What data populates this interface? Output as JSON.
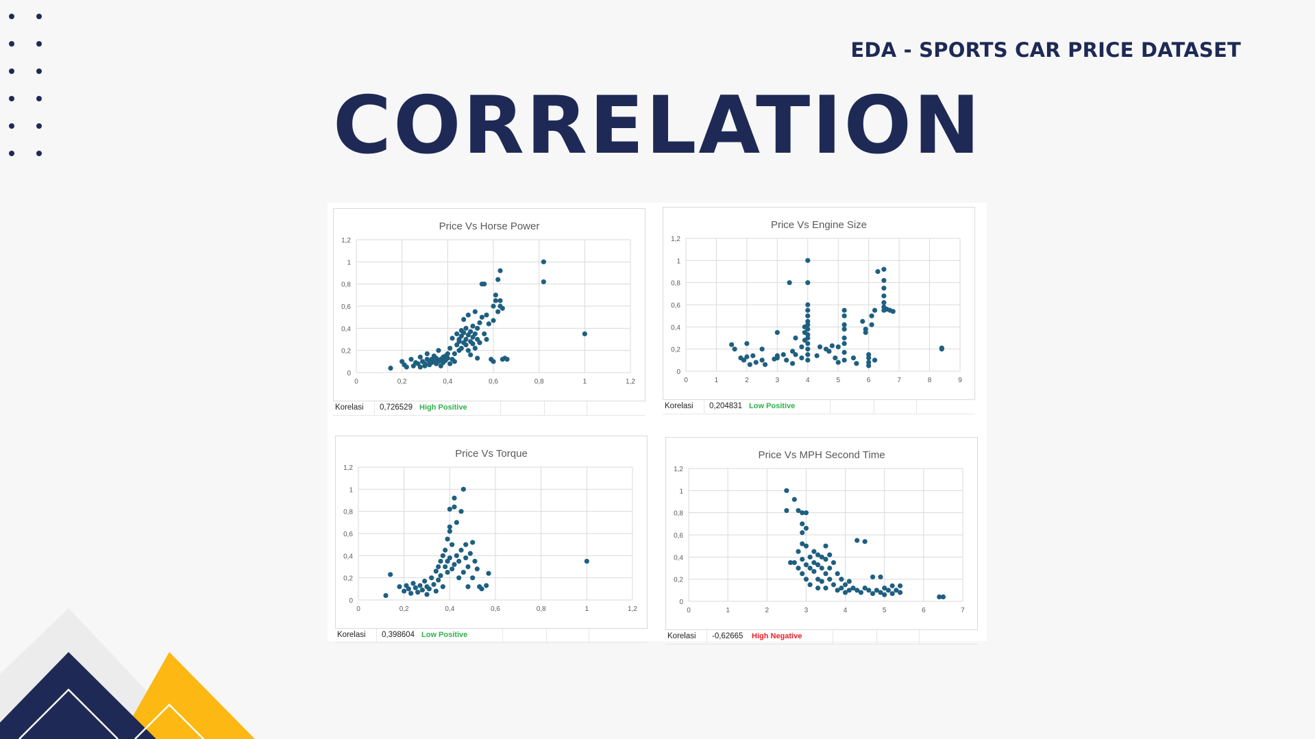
{
  "header": {
    "subtitle": "EDA - SPORTS CAR PRICE DATASET",
    "title": "CORRELATION"
  },
  "colors": {
    "navy": "#1e2a55",
    "yellow": "#fdb813",
    "marker": "#1f5f80",
    "positive": "#2db24a",
    "negative": "#e8202a"
  },
  "chart_data": [
    {
      "type": "scatter",
      "title": "Price Vs Horse Power",
      "xlim": [
        0,
        1.2
      ],
      "xticks": [
        0,
        0.2,
        0.4,
        0.6,
        0.8,
        1,
        1.2
      ],
      "xtick_labels": [
        "0",
        "0,2",
        "0,4",
        "0,6",
        "0,8",
        "1",
        "1,2"
      ],
      "ylim": [
        0,
        1.2
      ],
      "yticks": [
        0,
        0.2,
        0.4,
        0.6,
        0.8,
        1,
        1.2
      ],
      "ytick_labels": [
        "0",
        "0,2",
        "0,4",
        "0,6",
        "0,8",
        "1",
        "1,2"
      ],
      "grid": true,
      "points": [
        [
          0.15,
          0.04
        ],
        [
          0.2,
          0.1
        ],
        [
          0.21,
          0.07
        ],
        [
          0.22,
          0.05
        ],
        [
          0.24,
          0.12
        ],
        [
          0.25,
          0.06
        ],
        [
          0.26,
          0.09
        ],
        [
          0.27,
          0.08
        ],
        [
          0.28,
          0.05
        ],
        [
          0.28,
          0.14
        ],
        [
          0.29,
          0.1
        ],
        [
          0.3,
          0.08
        ],
        [
          0.3,
          0.06
        ],
        [
          0.31,
          0.12
        ],
        [
          0.31,
          0.17
        ],
        [
          0.32,
          0.1
        ],
        [
          0.32,
          0.07
        ],
        [
          0.33,
          0.09
        ],
        [
          0.33,
          0.12
        ],
        [
          0.34,
          0.15
        ],
        [
          0.34,
          0.11
        ],
        [
          0.35,
          0.08
        ],
        [
          0.35,
          0.13
        ],
        [
          0.36,
          0.1
        ],
        [
          0.36,
          0.2
        ],
        [
          0.37,
          0.12
        ],
        [
          0.37,
          0.06
        ],
        [
          0.38,
          0.14
        ],
        [
          0.38,
          0.09
        ],
        [
          0.39,
          0.15
        ],
        [
          0.39,
          0.11
        ],
        [
          0.4,
          0.13
        ],
        [
          0.4,
          0.17
        ],
        [
          0.41,
          0.08
        ],
        [
          0.41,
          0.22
        ],
        [
          0.42,
          0.12
        ],
        [
          0.42,
          0.31
        ],
        [
          0.43,
          0.17
        ],
        [
          0.43,
          0.1
        ],
        [
          0.44,
          0.25
        ],
        [
          0.44,
          0.35
        ],
        [
          0.45,
          0.2
        ],
        [
          0.45,
          0.3
        ],
        [
          0.45,
          0.28
        ],
        [
          0.46,
          0.33
        ],
        [
          0.46,
          0.38
        ],
        [
          0.46,
          0.22
        ],
        [
          0.47,
          0.27
        ],
        [
          0.47,
          0.36
        ],
        [
          0.47,
          0.48
        ],
        [
          0.48,
          0.3
        ],
        [
          0.48,
          0.25
        ],
        [
          0.48,
          0.4
        ],
        [
          0.49,
          0.34
        ],
        [
          0.49,
          0.2
        ],
        [
          0.49,
          0.52
        ],
        [
          0.5,
          0.28
        ],
        [
          0.5,
          0.37
        ],
        [
          0.5,
          0.16
        ],
        [
          0.51,
          0.32
        ],
        [
          0.51,
          0.42
        ],
        [
          0.51,
          0.26
        ],
        [
          0.52,
          0.35
        ],
        [
          0.52,
          0.55
        ],
        [
          0.52,
          0.22
        ],
        [
          0.53,
          0.3
        ],
        [
          0.53,
          0.4
        ],
        [
          0.53,
          0.13
        ],
        [
          0.54,
          0.27
        ],
        [
          0.54,
          0.45
        ],
        [
          0.55,
          0.8
        ],
        [
          0.56,
          0.8
        ],
        [
          0.55,
          0.5
        ],
        [
          0.56,
          0.35
        ],
        [
          0.57,
          0.3
        ],
        [
          0.57,
          0.52
        ],
        [
          0.58,
          0.44
        ],
        [
          0.59,
          0.12
        ],
        [
          0.6,
          0.1
        ],
        [
          0.6,
          0.47
        ],
        [
          0.6,
          0.6
        ],
        [
          0.61,
          0.65
        ],
        [
          0.61,
          0.7
        ],
        [
          0.62,
          0.55
        ],
        [
          0.62,
          0.84
        ],
        [
          0.63,
          0.92
        ],
        [
          0.63,
          0.65
        ],
        [
          0.63,
          0.6
        ],
        [
          0.64,
          0.12
        ],
        [
          0.64,
          0.58
        ],
        [
          0.65,
          0.13
        ],
        [
          0.66,
          0.12
        ],
        [
          0.82,
          1.0
        ],
        [
          0.82,
          0.82
        ],
        [
          1.0,
          0.35
        ]
      ],
      "correlation_label": "Korelasi",
      "correlation_value": "0,726529",
      "correlation_class": "High Positive",
      "class_color": "positive"
    },
    {
      "type": "scatter",
      "title": "Price Vs Engine Size",
      "xlim": [
        0,
        9
      ],
      "xticks": [
        0,
        1,
        2,
        3,
        4,
        5,
        6,
        7,
        8,
        9
      ],
      "xtick_labels": [
        "0",
        "1",
        "2",
        "3",
        "4",
        "5",
        "6",
        "7",
        "8",
        "9"
      ],
      "ylim": [
        0,
        1.2
      ],
      "yticks": [
        0,
        0.2,
        0.4,
        0.6,
        0.8,
        1,
        1.2
      ],
      "ytick_labels": [
        "0",
        "0,2",
        "0,4",
        "0,6",
        "0,8",
        "1",
        "1,2"
      ],
      "grid": true,
      "points": [
        [
          1.5,
          0.24
        ],
        [
          1.6,
          0.2
        ],
        [
          1.8,
          0.12
        ],
        [
          1.9,
          0.1
        ],
        [
          2.0,
          0.25
        ],
        [
          2.0,
          0.13
        ],
        [
          2.1,
          0.06
        ],
        [
          2.2,
          0.14
        ],
        [
          2.3,
          0.08
        ],
        [
          2.5,
          0.2
        ],
        [
          2.5,
          0.1
        ],
        [
          2.6,
          0.06
        ],
        [
          2.9,
          0.11
        ],
        [
          3.0,
          0.14
        ],
        [
          3.0,
          0.12
        ],
        [
          3.0,
          0.35
        ],
        [
          3.2,
          0.15
        ],
        [
          3.3,
          0.1
        ],
        [
          3.4,
          0.8
        ],
        [
          3.5,
          0.07
        ],
        [
          3.5,
          0.18
        ],
        [
          3.6,
          0.15
        ],
        [
          3.6,
          0.3
        ],
        [
          3.8,
          0.12
        ],
        [
          3.8,
          0.22
        ],
        [
          3.9,
          0.28
        ],
        [
          3.9,
          0.4
        ],
        [
          3.9,
          0.35
        ],
        [
          4.0,
          0.1
        ],
        [
          4.0,
          0.15
        ],
        [
          4.0,
          0.2
        ],
        [
          4.0,
          0.25
        ],
        [
          4.0,
          0.3
        ],
        [
          4.0,
          0.33
        ],
        [
          4.0,
          0.38
        ],
        [
          4.0,
          0.45
        ],
        [
          4.0,
          0.5
        ],
        [
          4.0,
          0.55
        ],
        [
          4.0,
          0.6
        ],
        [
          4.0,
          0.8
        ],
        [
          4.0,
          1.0
        ],
        [
          4.0,
          0.42
        ],
        [
          4.3,
          0.14
        ],
        [
          4.4,
          0.22
        ],
        [
          4.6,
          0.2
        ],
        [
          4.7,
          0.18
        ],
        [
          4.8,
          0.23
        ],
        [
          4.9,
          0.12
        ],
        [
          5.0,
          0.08
        ],
        [
          5.0,
          0.22
        ],
        [
          5.2,
          0.1
        ],
        [
          5.2,
          0.17
        ],
        [
          5.2,
          0.25
        ],
        [
          5.2,
          0.3
        ],
        [
          5.2,
          0.38
        ],
        [
          5.2,
          0.42
        ],
        [
          5.2,
          0.5
        ],
        [
          5.2,
          0.55
        ],
        [
          5.5,
          0.12
        ],
        [
          5.6,
          0.07
        ],
        [
          5.8,
          0.45
        ],
        [
          5.9,
          0.35
        ],
        [
          5.9,
          0.38
        ],
        [
          6.0,
          0.05
        ],
        [
          6.0,
          0.08
        ],
        [
          6.0,
          0.12
        ],
        [
          6.0,
          0.15
        ],
        [
          6.1,
          0.42
        ],
        [
          6.1,
          0.5
        ],
        [
          6.2,
          0.1
        ],
        [
          6.2,
          0.55
        ],
        [
          6.3,
          0.9
        ],
        [
          6.5,
          0.55
        ],
        [
          6.5,
          0.58
        ],
        [
          6.5,
          0.62
        ],
        [
          6.5,
          0.68
        ],
        [
          6.5,
          0.75
        ],
        [
          6.5,
          0.82
        ],
        [
          6.5,
          0.92
        ],
        [
          6.6,
          0.56
        ],
        [
          6.7,
          0.55
        ],
        [
          6.8,
          0.54
        ],
        [
          8.4,
          0.21
        ],
        [
          8.4,
          0.2
        ]
      ],
      "correlation_label": "Korelasi",
      "correlation_value": "0,204831",
      "correlation_class": "Low Positive",
      "class_color": "positive"
    },
    {
      "type": "scatter",
      "title": "Price Vs Torque",
      "xlim": [
        0,
        1.2
      ],
      "xticks": [
        0,
        0.2,
        0.4,
        0.6,
        0.8,
        1,
        1.2
      ],
      "xtick_labels": [
        "0",
        "0,2",
        "0,4",
        "0,6",
        "0,8",
        "1",
        "1,2"
      ],
      "ylim": [
        0,
        1.2
      ],
      "yticks": [
        0,
        0.2,
        0.4,
        0.6,
        0.8,
        1,
        1.2
      ],
      "ytick_labels": [
        "0",
        "0,2",
        "0,4",
        "0,6",
        "0,8",
        "1",
        "1,2"
      ],
      "grid": true,
      "points": [
        [
          0.12,
          0.04
        ],
        [
          0.14,
          0.23
        ],
        [
          0.18,
          0.12
        ],
        [
          0.2,
          0.08
        ],
        [
          0.21,
          0.13
        ],
        [
          0.22,
          0.1
        ],
        [
          0.23,
          0.06
        ],
        [
          0.24,
          0.15
        ],
        [
          0.25,
          0.11
        ],
        [
          0.26,
          0.07
        ],
        [
          0.27,
          0.13
        ],
        [
          0.28,
          0.09
        ],
        [
          0.29,
          0.17
        ],
        [
          0.3,
          0.12
        ],
        [
          0.3,
          0.05
        ],
        [
          0.31,
          0.1
        ],
        [
          0.32,
          0.2
        ],
        [
          0.33,
          0.14
        ],
        [
          0.34,
          0.26
        ],
        [
          0.34,
          0.08
        ],
        [
          0.35,
          0.3
        ],
        [
          0.35,
          0.18
        ],
        [
          0.36,
          0.35
        ],
        [
          0.36,
          0.22
        ],
        [
          0.37,
          0.4
        ],
        [
          0.37,
          0.12
        ],
        [
          0.38,
          0.3
        ],
        [
          0.38,
          0.45
        ],
        [
          0.39,
          0.25
        ],
        [
          0.39,
          0.35
        ],
        [
          0.39,
          0.55
        ],
        [
          0.4,
          0.62
        ],
        [
          0.4,
          0.66
        ],
        [
          0.4,
          0.82
        ],
        [
          0.4,
          0.38
        ],
        [
          0.41,
          0.28
        ],
        [
          0.41,
          0.5
        ],
        [
          0.42,
          0.32
        ],
        [
          0.42,
          0.84
        ],
        [
          0.42,
          0.92
        ],
        [
          0.43,
          0.4
        ],
        [
          0.43,
          0.7
        ],
        [
          0.44,
          0.2
        ],
        [
          0.44,
          0.35
        ],
        [
          0.45,
          0.8
        ],
        [
          0.45,
          0.45
        ],
        [
          0.46,
          1.0
        ],
        [
          0.46,
          0.25
        ],
        [
          0.47,
          0.38
        ],
        [
          0.47,
          0.5
        ],
        [
          0.48,
          0.3
        ],
        [
          0.48,
          0.12
        ],
        [
          0.49,
          0.42
        ],
        [
          0.5,
          0.52
        ],
        [
          0.5,
          0.2
        ],
        [
          0.51,
          0.35
        ],
        [
          0.52,
          0.28
        ],
        [
          0.53,
          0.12
        ],
        [
          0.54,
          0.1
        ],
        [
          0.56,
          0.13
        ],
        [
          0.57,
          0.24
        ],
        [
          1.0,
          0.35
        ]
      ],
      "correlation_label": "Korelasi",
      "correlation_value": "0,398604",
      "correlation_class": "Low Positive",
      "class_color": "positive"
    },
    {
      "type": "scatter",
      "title": "Price Vs MPH Second Time",
      "xlim": [
        0,
        7
      ],
      "xticks": [
        0,
        1,
        2,
        3,
        4,
        5,
        6,
        7
      ],
      "xtick_labels": [
        "0",
        "1",
        "2",
        "3",
        "4",
        "5",
        "6",
        "7"
      ],
      "ylim": [
        0,
        1.2
      ],
      "yticks": [
        0,
        0.2,
        0.4,
        0.6,
        0.8,
        1,
        1.2
      ],
      "ytick_labels": [
        "0",
        "0,2",
        "0,4",
        "0,6",
        "0,8",
        "1",
        "1,2"
      ],
      "grid": true,
      "points": [
        [
          2.5,
          1.0
        ],
        [
          2.5,
          0.82
        ],
        [
          2.6,
          0.35
        ],
        [
          2.7,
          0.92
        ],
        [
          2.7,
          0.35
        ],
        [
          2.8,
          0.45
        ],
        [
          2.8,
          0.3
        ],
        [
          2.8,
          0.82
        ],
        [
          2.9,
          0.8
        ],
        [
          2.9,
          0.7
        ],
        [
          2.9,
          0.62
        ],
        [
          2.9,
          0.52
        ],
        [
          2.9,
          0.38
        ],
        [
          2.9,
          0.25
        ],
        [
          3.0,
          0.8
        ],
        [
          3.0,
          0.66
        ],
        [
          3.0,
          0.5
        ],
        [
          3.0,
          0.33
        ],
        [
          3.0,
          0.2
        ],
        [
          3.1,
          0.4
        ],
        [
          3.1,
          0.3
        ],
        [
          3.1,
          0.15
        ],
        [
          3.2,
          0.45
        ],
        [
          3.2,
          0.35
        ],
        [
          3.2,
          0.27
        ],
        [
          3.3,
          0.42
        ],
        [
          3.3,
          0.33
        ],
        [
          3.3,
          0.2
        ],
        [
          3.3,
          0.12
        ],
        [
          3.4,
          0.4
        ],
        [
          3.4,
          0.3
        ],
        [
          3.4,
          0.18
        ],
        [
          3.5,
          0.5
        ],
        [
          3.5,
          0.38
        ],
        [
          3.5,
          0.25
        ],
        [
          3.5,
          0.12
        ],
        [
          3.6,
          0.42
        ],
        [
          3.6,
          0.3
        ],
        [
          3.6,
          0.2
        ],
        [
          3.7,
          0.35
        ],
        [
          3.7,
          0.15
        ],
        [
          3.8,
          0.25
        ],
        [
          3.8,
          0.1
        ],
        [
          3.9,
          0.2
        ],
        [
          3.9,
          0.12
        ],
        [
          4.0,
          0.15
        ],
        [
          4.0,
          0.08
        ],
        [
          4.1,
          0.18
        ],
        [
          4.1,
          0.1
        ],
        [
          4.2,
          0.12
        ],
        [
          4.3,
          0.55
        ],
        [
          4.3,
          0.1
        ],
        [
          4.4,
          0.08
        ],
        [
          4.5,
          0.12
        ],
        [
          4.5,
          0.54
        ],
        [
          4.6,
          0.1
        ],
        [
          4.7,
          0.07
        ],
        [
          4.7,
          0.22
        ],
        [
          4.8,
          0.1
        ],
        [
          4.9,
          0.22
        ],
        [
          4.9,
          0.08
        ],
        [
          5.0,
          0.12
        ],
        [
          5.0,
          0.06
        ],
        [
          5.1,
          0.1
        ],
        [
          5.2,
          0.07
        ],
        [
          5.2,
          0.14
        ],
        [
          5.3,
          0.1
        ],
        [
          5.4,
          0.14
        ],
        [
          5.4,
          0.08
        ],
        [
          6.4,
          0.04
        ],
        [
          6.5,
          0.04
        ]
      ],
      "correlation_label": "Korelasi",
      "correlation_value": "-0,62665",
      "correlation_class": "High Negative",
      "class_color": "negative"
    }
  ]
}
